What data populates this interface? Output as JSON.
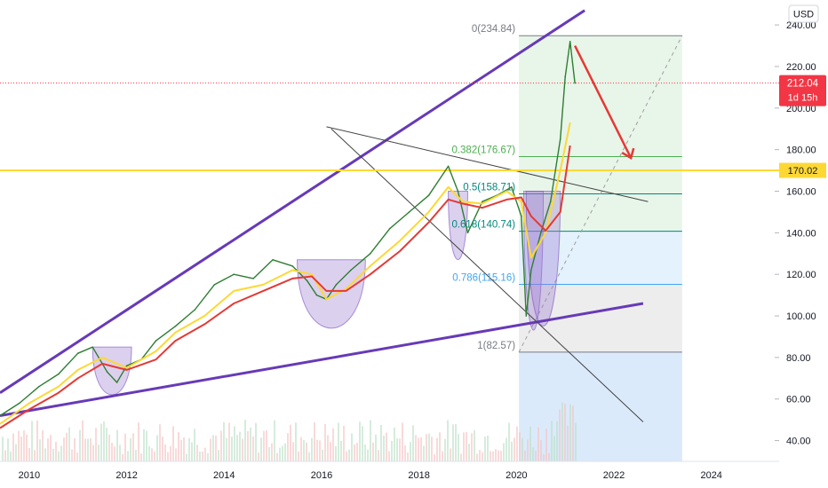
{
  "currency": "USD",
  "price": {
    "current": "212.04",
    "countdown": "1d 15h",
    "color": "#f23645",
    "level_label": "170.02",
    "level_color": "#fdd835"
  },
  "fib": {
    "levels": [
      {
        "label": "0(234.84)",
        "value": 234.84,
        "color": "#787b86"
      },
      {
        "label": "0.382(176.67)",
        "value": 176.67,
        "color": "#4caf50"
      },
      {
        "label": "0.5(158.71)",
        "value": 158.71,
        "color": "#00897b"
      },
      {
        "label": "0.618(140.74)",
        "value": 140.74,
        "color": "#00897b"
      },
      {
        "label": "0.786(115.16)",
        "value": 115.16,
        "color": "#42a5f5"
      },
      {
        "label": "1(82.57)",
        "value": 82.57,
        "color": "#787b86"
      }
    ]
  },
  "chart_data": {
    "type": "line",
    "ylim": [
      30,
      252
    ],
    "xlim": [
      2009.4,
      2025.3
    ],
    "yticks": [
      "40.00",
      "60.00",
      "80.00",
      "100.00",
      "120.00",
      "140.00",
      "160.00",
      "180.00",
      "200.00",
      "220.00",
      "240.00"
    ],
    "xticks": [
      "2010",
      "2012",
      "2014",
      "2016",
      "2018",
      "2020",
      "2022",
      "2024"
    ],
    "series": [
      {
        "color": "#2e7d32",
        "x": [
          2009.4,
          2009.8,
          2010.2,
          2010.6,
          2011.0,
          2011.3,
          2011.6,
          2011.8,
          2012.0,
          2012.3,
          2012.6,
          2013.0,
          2013.4,
          2013.8,
          2014.2,
          2014.6,
          2015.0,
          2015.4,
          2015.7,
          2015.9,
          2016.1,
          2016.3,
          2016.6,
          2017.0,
          2017.4,
          2017.8,
          2018.2,
          2018.6,
          2018.8,
          2019.0,
          2019.3,
          2019.6,
          2019.9,
          2020.1,
          2020.2,
          2020.3,
          2020.5,
          2020.7,
          2020.9,
          2021.0,
          2021.1,
          2021.2
        ],
        "values": [
          52,
          58,
          66,
          72,
          82,
          85,
          73,
          68,
          76,
          79,
          88,
          95,
          103,
          115,
          120,
          118,
          127,
          124,
          117,
          110,
          108,
          115,
          122,
          130,
          142,
          150,
          158,
          172,
          160,
          140,
          155,
          158,
          162,
          148,
          100,
          122,
          140,
          155,
          185,
          215,
          232,
          212.04
        ]
      },
      {
        "color": "#fdd835",
        "x": [
          2009.4,
          2010.0,
          2010.6,
          2011.0,
          2011.5,
          2012.0,
          2012.6,
          2013.0,
          2013.6,
          2014.2,
          2014.8,
          2015.4,
          2015.8,
          2016.1,
          2016.5,
          2017.0,
          2017.6,
          2018.2,
          2018.6,
          2018.9,
          2019.3,
          2019.8,
          2020.1,
          2020.3,
          2020.6,
          2020.9,
          2021.1
        ],
        "values": [
          48,
          58,
          66,
          74,
          80,
          75,
          83,
          92,
          100,
          112,
          115,
          122,
          120,
          108,
          113,
          124,
          136,
          150,
          162,
          155,
          154,
          160,
          155,
          128,
          140,
          170,
          193
        ]
      },
      {
        "color": "#e53935",
        "x": [
          2009.4,
          2010.0,
          2010.6,
          2011.0,
          2011.5,
          2012.0,
          2012.6,
          2013.0,
          2013.6,
          2014.2,
          2014.8,
          2015.4,
          2015.8,
          2016.1,
          2016.5,
          2017.0,
          2017.6,
          2018.2,
          2018.6,
          2018.9,
          2019.3,
          2019.8,
          2020.1,
          2020.3,
          2020.6,
          2020.9,
          2021.1
        ],
        "values": [
          46,
          55,
          63,
          70,
          77,
          74,
          79,
          88,
          96,
          106,
          112,
          118,
          119,
          112,
          112,
          120,
          131,
          145,
          156,
          154,
          152,
          156,
          157,
          148,
          141,
          150,
          182
        ]
      }
    ]
  }
}
